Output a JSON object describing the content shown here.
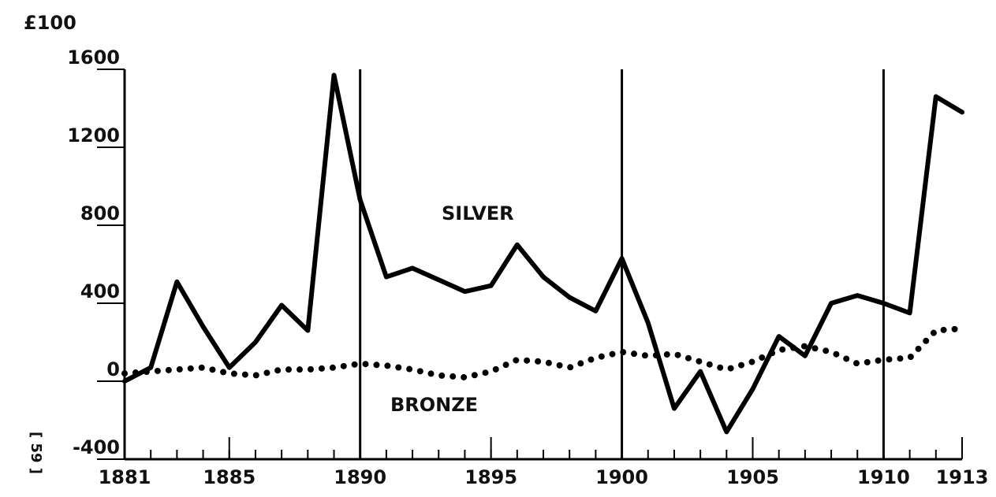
{
  "chart_data": {
    "type": "line",
    "y_unit": "£100",
    "page_label": "[ 59 ]",
    "annotations": [
      "SILVER",
      "BRONZE"
    ],
    "x": [
      1881,
      1882,
      1883,
      1884,
      1885,
      1886,
      1887,
      1888,
      1889,
      1890,
      1891,
      1892,
      1893,
      1894,
      1895,
      1896,
      1897,
      1898,
      1899,
      1900,
      1901,
      1902,
      1903,
      1904,
      1905,
      1906,
      1907,
      1908,
      1909,
      1910,
      1911,
      1912,
      1913
    ],
    "series": [
      {
        "name": "SILVER",
        "color": "#000000",
        "style": "solid",
        "values": [
          0,
          70,
          510,
          280,
          70,
          200,
          390,
          260,
          1570,
          930,
          535,
          580,
          520,
          460,
          490,
          700,
          535,
          430,
          360,
          630,
          300,
          -140,
          50,
          -260,
          -40,
          230,
          130,
          400,
          440,
          400,
          350,
          1460,
          1380
        ]
      },
      {
        "name": "BRONZE",
        "color": "#000000",
        "style": "dotted",
        "values": [
          40,
          50,
          60,
          70,
          40,
          30,
          60,
          60,
          70,
          90,
          80,
          60,
          30,
          20,
          50,
          110,
          100,
          70,
          120,
          150,
          130,
          140,
          100,
          60,
          100,
          160,
          180,
          150,
          90,
          110,
          120,
          260,
          270
        ]
      }
    ],
    "xlim": [
      1881,
      1913
    ],
    "xticks": [
      1881,
      1885,
      1890,
      1895,
      1900,
      1905,
      1910,
      1913
    ],
    "ylim": [
      -400,
      1600
    ],
    "yticks": [
      -400,
      0,
      400,
      800,
      1200,
      1600
    ],
    "vlines": [
      1890,
      1900,
      1910
    ]
  }
}
